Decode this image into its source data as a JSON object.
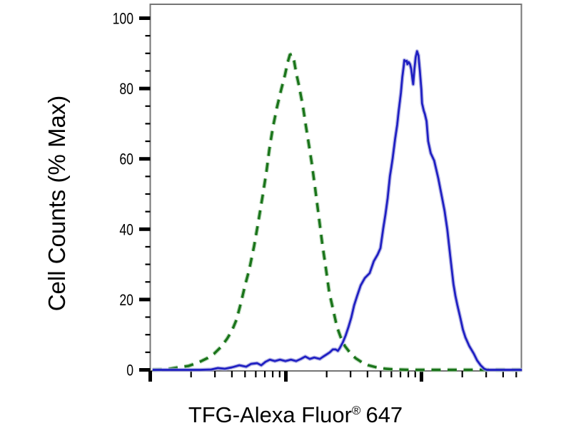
{
  "chart_data": {
    "type": "line",
    "subtype": "flow-cytometry-histogram-overlay",
    "title": "",
    "xlabel": "TFG-Alexa Fluor® 647",
    "xlabel_parts": {
      "main": "TFG-Alexa Fluor",
      "registered": "®",
      "suffix": "647"
    },
    "ylabel": "Cell Counts (% Max)",
    "x_scale": "log",
    "x_range_units": [
      1,
      551
    ],
    "ylim": [
      0,
      104
    ],
    "y_ticks_major": [
      0,
      20,
      40,
      60,
      80,
      100
    ],
    "y_tick_minor_step": 5,
    "x_ticks_major_units": [
      1,
      10,
      100
    ],
    "x_ticks_minor_units": [
      2,
      3,
      4,
      5,
      6,
      7,
      8,
      9,
      20,
      30,
      40,
      50,
      60,
      70,
      80,
      90,
      200,
      300,
      400,
      500
    ],
    "grid": false,
    "legend": "none",
    "colors": {
      "frame": "#757575",
      "ticks": "#000000",
      "text": "#000000",
      "background": "#ffffff"
    },
    "series": [
      {
        "name": "green-dashed",
        "style": "dashed",
        "color": "#1a741a",
        "halo": "#a8cfa8",
        "points": [
          [
            1.04,
            0
          ],
          [
            1.3,
            0.1
          ],
          [
            1.61,
            0.7
          ],
          [
            1.91,
            1.1
          ],
          [
            2.27,
            2.1
          ],
          [
            2.63,
            3.3
          ],
          [
            2.96,
            4.6
          ],
          [
            3.34,
            6.6
          ],
          [
            3.68,
            8.8
          ],
          [
            4.0,
            11.1
          ],
          [
            4.33,
            14.3
          ],
          [
            4.66,
            19.0
          ],
          [
            5.0,
            24.0
          ],
          [
            5.37,
            28.5
          ],
          [
            5.83,
            35.2
          ],
          [
            6.28,
            42.3
          ],
          [
            6.74,
            49.4
          ],
          [
            7.2,
            56.5
          ],
          [
            7.55,
            62.6
          ],
          [
            8.0,
            68.7
          ],
          [
            8.6,
            74.7
          ],
          [
            9.25,
            79.8
          ],
          [
            9.85,
            83.9
          ],
          [
            10.3,
            87.3
          ],
          [
            10.7,
            89.6
          ],
          [
            11.1,
            89.8
          ],
          [
            11.5,
            87.9
          ],
          [
            11.9,
            84.5
          ],
          [
            12.5,
            80.8
          ],
          [
            13.4,
            74.7
          ],
          [
            14.0,
            69.7
          ],
          [
            14.7,
            64.6
          ],
          [
            15.5,
            58.9
          ],
          [
            16.4,
            52.0
          ],
          [
            17.4,
            44.3
          ],
          [
            18.5,
            36.2
          ],
          [
            19.7,
            29.1
          ],
          [
            20.9,
            22.0
          ],
          [
            22.4,
            16.9
          ],
          [
            23.8,
            12.3
          ],
          [
            25.3,
            9.4
          ],
          [
            27.2,
            6.8
          ],
          [
            29.8,
            4.8
          ],
          [
            32.7,
            3.3
          ],
          [
            36.5,
            2.1
          ],
          [
            40.7,
            1.3
          ],
          [
            46.6,
            0.7
          ],
          [
            54.3,
            0.3
          ],
          [
            65.5,
            0.1
          ],
          [
            83,
            0
          ],
          [
            127,
            0
          ],
          [
            205,
            0
          ],
          [
            334,
            0
          ],
          [
            551,
            0
          ]
        ]
      },
      {
        "name": "blue-solid",
        "style": "solid",
        "color": "#1e1ec2",
        "halo": "#a6a6e0",
        "points": [
          [
            1.04,
            0
          ],
          [
            1.61,
            0
          ],
          [
            2.33,
            0
          ],
          [
            2.82,
            0.1
          ],
          [
            3.15,
            0.5
          ],
          [
            3.55,
            0.3
          ],
          [
            4.0,
            0.7
          ],
          [
            4.54,
            1.3
          ],
          [
            5.1,
            0.9
          ],
          [
            5.55,
            1.7
          ],
          [
            6.13,
            1.9
          ],
          [
            6.58,
            1.3
          ],
          [
            7.08,
            2.3
          ],
          [
            7.62,
            2.9
          ],
          [
            8.3,
            2.5
          ],
          [
            9.05,
            2.9
          ],
          [
            9.93,
            2.5
          ],
          [
            10.9,
            2.9
          ],
          [
            11.9,
            2.5
          ],
          [
            12.9,
            3.1
          ],
          [
            13.9,
            3.8
          ],
          [
            15.0,
            3.1
          ],
          [
            16.2,
            3.5
          ],
          [
            17.8,
            3.1
          ],
          [
            18.9,
            3.8
          ],
          [
            20.0,
            4.4
          ],
          [
            21.1,
            5.0
          ],
          [
            22.2,
            5.8
          ],
          [
            23.3,
            5.8
          ],
          [
            24.2,
            5.4
          ],
          [
            25.0,
            6.2
          ],
          [
            26.3,
            7.8
          ],
          [
            27.6,
            9.8
          ],
          [
            29.0,
            12.3
          ],
          [
            30.4,
            14.9
          ],
          [
            31.9,
            18.4
          ],
          [
            33.5,
            21.0
          ],
          [
            35.6,
            24.0
          ],
          [
            38.2,
            26.1
          ],
          [
            41.5,
            27.5
          ],
          [
            44.5,
            30.9
          ],
          [
            47.5,
            32.8
          ],
          [
            49.8,
            34.6
          ],
          [
            52.3,
            40.3
          ],
          [
            54.3,
            44.3
          ],
          [
            56.3,
            48.8
          ],
          [
            58.5,
            55.1
          ],
          [
            59.9,
            57.5
          ],
          [
            61.3,
            60.1
          ],
          [
            63.8,
            65.4
          ],
          [
            66.2,
            69.7
          ],
          [
            67.8,
            73.3
          ],
          [
            70.5,
            78.8
          ],
          [
            72.3,
            83.3
          ],
          [
            74.0,
            86.5
          ],
          [
            74.8,
            88.1
          ],
          [
            76.4,
            87.7
          ],
          [
            77.9,
            87.9
          ],
          [
            78.8,
            86.9
          ],
          [
            80.6,
            87.5
          ],
          [
            82.4,
            86.9
          ],
          [
            84.1,
            85.5
          ],
          [
            86.0,
            82.3
          ],
          [
            86.9,
            81.2
          ],
          [
            88.6,
            85.3
          ],
          [
            90.6,
            88.9
          ],
          [
            92.8,
            90.6
          ],
          [
            95.0,
            89.4
          ],
          [
            97.4,
            84.9
          ],
          [
            99.8,
            79.8
          ],
          [
            101,
            75.8
          ],
          [
            104,
            73.7
          ],
          [
            106,
            72.7
          ],
          [
            109,
            70.7
          ],
          [
            112,
            65.0
          ],
          [
            117,
            61.6
          ],
          [
            124,
            59.5
          ],
          [
            133,
            54.5
          ],
          [
            141,
            49.4
          ],
          [
            148,
            45.3
          ],
          [
            155,
            39.9
          ],
          [
            161,
            34.2
          ],
          [
            166,
            29.7
          ],
          [
            172,
            24.4
          ],
          [
            178,
            21.0
          ],
          [
            184,
            18.4
          ],
          [
            193,
            14.9
          ],
          [
            202,
            11.5
          ],
          [
            211,
            9.2
          ],
          [
            225,
            6.8
          ],
          [
            243,
            4.6
          ],
          [
            257,
            2.7
          ],
          [
            273,
            1.3
          ],
          [
            290,
            0.3
          ],
          [
            304,
            0
          ],
          [
            378,
            0
          ],
          [
            551,
            0
          ]
        ]
      }
    ]
  }
}
